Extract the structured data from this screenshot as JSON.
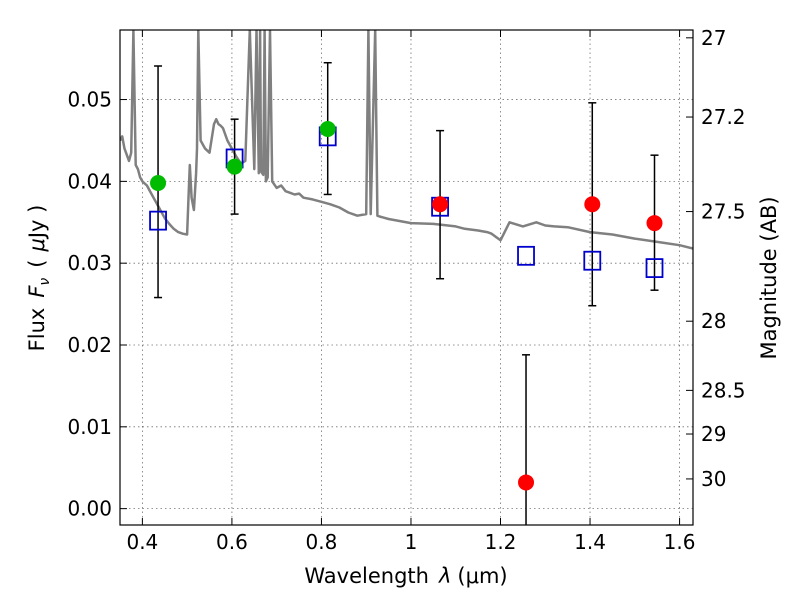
{
  "chart_data": {
    "type": "scatter",
    "xlabel_parts": {
      "word": "Wavelength",
      "symbol": "λ",
      "unit": "(μm)"
    },
    "ylabel_parts": {
      "word": "Flux",
      "symbol": "F",
      "subscript": "ν",
      "unit_pre": "(",
      "unit_mu": "μ",
      "unit_post": "Jy )"
    },
    "y2label": "Magnitude (AB)",
    "xlim": [
      0.35,
      1.63
    ],
    "ylim": [
      -0.002,
      0.0585
    ],
    "xticks": [
      0.4,
      0.6,
      0.8,
      1.0,
      1.2,
      1.4,
      1.6
    ],
    "xtick_labels": [
      "0.4",
      "0.6",
      "0.8",
      "1",
      "1.2",
      "1.4",
      "1.6"
    ],
    "yticks": [
      0.0,
      0.01,
      0.02,
      0.03,
      0.04,
      0.05
    ],
    "ytick_labels": [
      "0.00",
      "0.01",
      "0.02",
      "0.03",
      "0.04",
      "0.05"
    ],
    "magnitude_ticks": [
      27,
      27.2,
      27.5,
      28,
      28.5,
      29,
      30
    ],
    "magnitude_tick_labels": [
      "27",
      "27.2",
      "27.5",
      "28",
      "28.5",
      "29",
      "30"
    ],
    "grid": true,
    "colors": {
      "model": "#808080",
      "green": "#00bb00",
      "red": "#ff0000",
      "square": "#0000cc",
      "error": "#000000"
    },
    "measurements": [
      {
        "x": 0.435,
        "y": 0.0398,
        "ylow": 0.0258,
        "yhigh": 0.0541,
        "color": "green"
      },
      {
        "x": 0.606,
        "y": 0.0418,
        "ylow": 0.036,
        "yhigh": 0.0476,
        "color": "green"
      },
      {
        "x": 0.814,
        "y": 0.0464,
        "ylow": 0.0384,
        "yhigh": 0.0545,
        "color": "green"
      },
      {
        "x": 1.065,
        "y": 0.0372,
        "ylow": 0.0281,
        "yhigh": 0.0462,
        "color": "red"
      },
      {
        "x": 1.257,
        "y": 0.0032,
        "ylow": -0.0025,
        "yhigh": 0.0188,
        "color": "red"
      },
      {
        "x": 1.405,
        "y": 0.0372,
        "ylow": 0.0248,
        "yhigh": 0.0496,
        "color": "red"
      },
      {
        "x": 1.544,
        "y": 0.0349,
        "ylow": 0.0267,
        "yhigh": 0.0432,
        "color": "red"
      }
    ],
    "model_points": [
      {
        "x": 0.435,
        "y": 0.0352
      },
      {
        "x": 0.606,
        "y": 0.0428
      },
      {
        "x": 0.814,
        "y": 0.0455
      },
      {
        "x": 1.065,
        "y": 0.0369
      },
      {
        "x": 1.257,
        "y": 0.0309
      },
      {
        "x": 1.405,
        "y": 0.0303
      },
      {
        "x": 1.544,
        "y": 0.0294
      }
    ],
    "model_spectrum": {
      "x": [
        0.35,
        0.355,
        0.36,
        0.37,
        0.375,
        0.38,
        0.385,
        0.39,
        0.395,
        0.4,
        0.41,
        0.42,
        0.43,
        0.44,
        0.45,
        0.46,
        0.47,
        0.48,
        0.49,
        0.5,
        0.503,
        0.506,
        0.51,
        0.515,
        0.52,
        0.522,
        0.525,
        0.53,
        0.54,
        0.55,
        0.56,
        0.565,
        0.57,
        0.575,
        0.58,
        0.59,
        0.6,
        0.61,
        0.62,
        0.63,
        0.64,
        0.65,
        0.655,
        0.66,
        0.663,
        0.665,
        0.67,
        0.673,
        0.676,
        0.68,
        0.685,
        0.69,
        0.7,
        0.71,
        0.72,
        0.73,
        0.74,
        0.75,
        0.76,
        0.78,
        0.8,
        0.82,
        0.84,
        0.86,
        0.88,
        0.9,
        0.905,
        0.91,
        0.92,
        0.925,
        0.93,
        0.95,
        1.0,
        1.05,
        1.1,
        1.12,
        1.15,
        1.17,
        1.18,
        1.19,
        1.2,
        1.22,
        1.25,
        1.28,
        1.3,
        1.32,
        1.35,
        1.4,
        1.45,
        1.5,
        1.55,
        1.6,
        1.63
      ],
      "y": [
        0.045,
        0.0455,
        0.044,
        0.0425,
        0.0435,
        0.0585,
        0.042,
        0.0415,
        0.0405,
        0.04,
        0.0395,
        0.0385,
        0.0375,
        0.0365,
        0.0355,
        0.0348,
        0.0342,
        0.0338,
        0.0336,
        0.0335,
        0.038,
        0.042,
        0.038,
        0.0365,
        0.041,
        0.044,
        0.0585,
        0.045,
        0.044,
        0.0435,
        0.047,
        0.0476,
        0.047,
        0.0468,
        0.0465,
        0.045,
        0.044,
        0.043,
        0.0422,
        0.0425,
        0.0585,
        0.0415,
        0.0585,
        0.041,
        0.0585,
        0.0412,
        0.0408,
        0.0585,
        0.04,
        0.0405,
        0.0585,
        0.04,
        0.0392,
        0.0395,
        0.0388,
        0.0386,
        0.0384,
        0.0385,
        0.038,
        0.0378,
        0.0375,
        0.0372,
        0.0368,
        0.0362,
        0.0358,
        0.036,
        0.0585,
        0.036,
        0.0585,
        0.0358,
        0.0357,
        0.0354,
        0.0349,
        0.0348,
        0.0345,
        0.0342,
        0.034,
        0.0338,
        0.0336,
        0.0332,
        0.0328,
        0.035,
        0.0345,
        0.035,
        0.0346,
        0.0345,
        0.0344,
        0.0338,
        0.0335,
        0.033,
        0.0326,
        0.0322,
        0.0318
      ]
    }
  }
}
